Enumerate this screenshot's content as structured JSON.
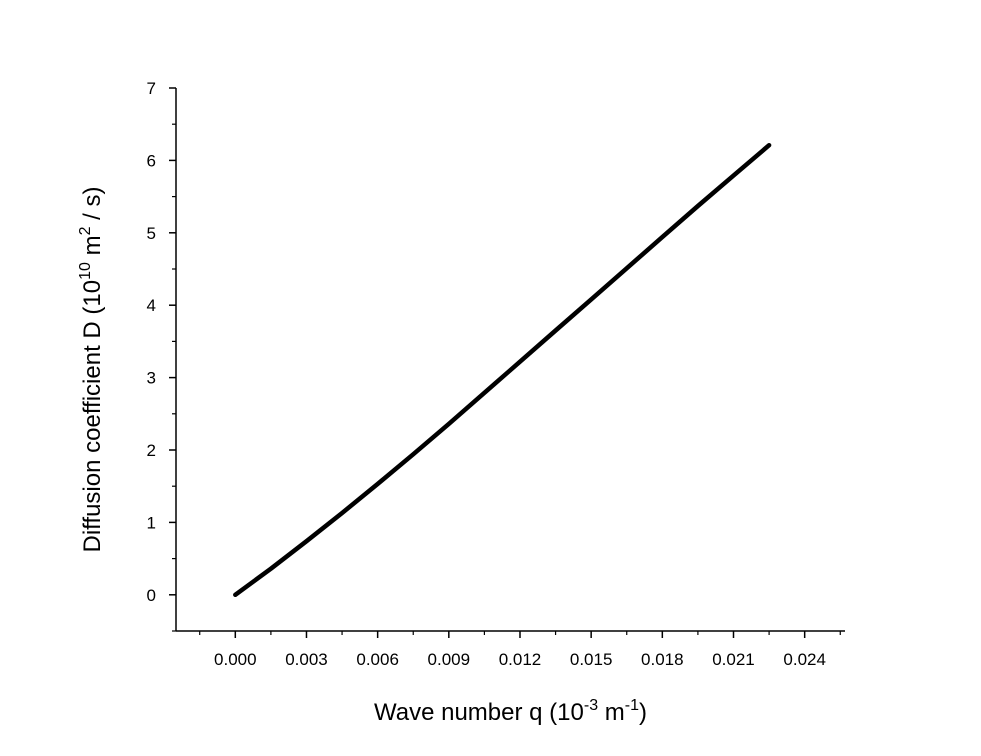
{
  "chart_data": {
    "type": "line",
    "title": "",
    "xlabel": {
      "prefix": "Wave number q (10",
      "exp1": "-3",
      "middle": " m",
      "exp2": "-1",
      "suffix": ")"
    },
    "ylabel": {
      "prefix": "Diffusion coefficient D (10",
      "exp1": "10",
      "middle": " m",
      "exp2": "2",
      "suffix": " / s)"
    },
    "xlim": [
      -0.0025,
      0.0257
    ],
    "ylim": [
      -0.5,
      7
    ],
    "x_ticks": [
      {
        "value": 0.0,
        "label": "0.000"
      },
      {
        "value": 0.003,
        "label": "0.003"
      },
      {
        "value": 0.006,
        "label": "0.006"
      },
      {
        "value": 0.009,
        "label": "0.009"
      },
      {
        "value": 0.012,
        "label": "0.012"
      },
      {
        "value": 0.015,
        "label": "0.015"
      },
      {
        "value": 0.018,
        "label": "0.018"
      },
      {
        "value": 0.021,
        "label": "0.021"
      },
      {
        "value": 0.024,
        "label": "0.024"
      }
    ],
    "y_ticks": [
      {
        "value": 0,
        "label": "0"
      },
      {
        "value": 1,
        "label": "1"
      },
      {
        "value": 2,
        "label": "2"
      },
      {
        "value": 3,
        "label": "3"
      },
      {
        "value": 4,
        "label": "4"
      },
      {
        "value": 5,
        "label": "5"
      },
      {
        "value": 6,
        "label": "6"
      },
      {
        "value": 7,
        "label": "7"
      }
    ],
    "grid": false,
    "legend": "none",
    "series": [
      {
        "color": "#000000",
        "x": [
          0.0,
          0.0015,
          0.003,
          0.0045,
          0.006,
          0.0075,
          0.009,
          0.0105,
          0.012,
          0.0135,
          0.015,
          0.0165,
          0.018,
          0.0195,
          0.021,
          0.0225
        ],
        "y": [
          0.0,
          0.36,
          0.74,
          1.13,
          1.53,
          1.94,
          2.36,
          2.79,
          3.22,
          3.65,
          4.08,
          4.51,
          4.94,
          5.37,
          5.79,
          6.21
        ]
      }
    ]
  }
}
